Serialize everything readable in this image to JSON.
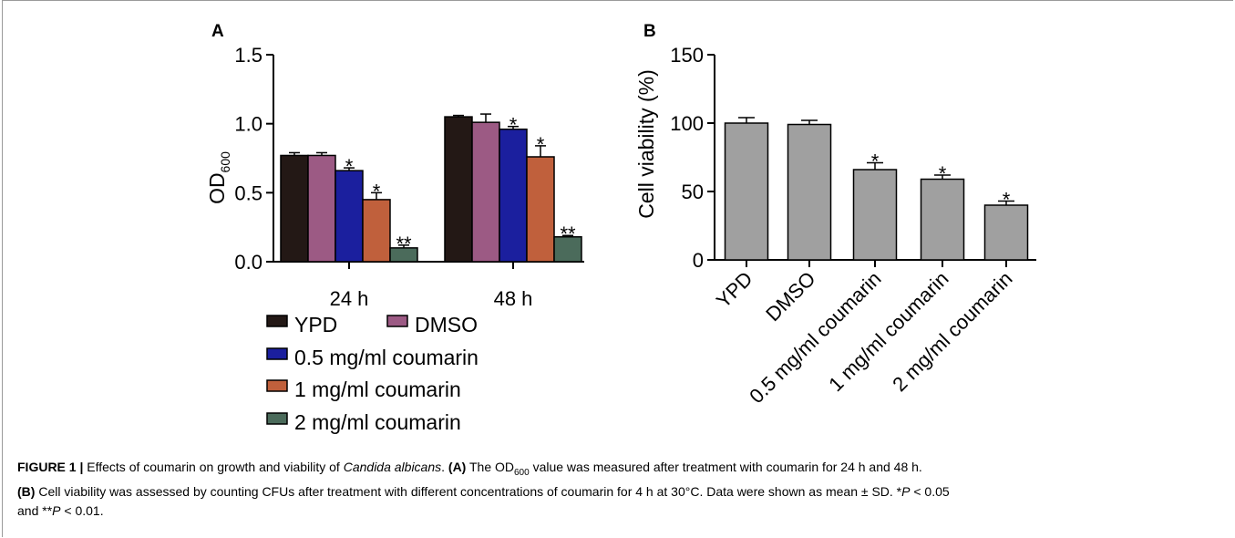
{
  "panel_a_letter": "A",
  "panel_b_letter": "B",
  "chart_data": [
    {
      "type": "bar",
      "panel": "A",
      "ylabel_main": "OD",
      "ylabel_sub": "600",
      "xlabel": "",
      "ylim": [
        0,
        1.5
      ],
      "yticks": [
        "0.0",
        "0.5",
        "1.0",
        "1.5"
      ],
      "categories": [
        "24 h",
        "48 h"
      ],
      "series": [
        {
          "name": "YPD",
          "values": [
            0.77,
            1.05
          ],
          "errors": [
            0.02,
            0.01
          ],
          "marks": [
            "",
            ""
          ],
          "color": "#231815"
        },
        {
          "name": "DMSO",
          "values": [
            0.77,
            1.01
          ],
          "errors": [
            0.02,
            0.06
          ],
          "marks": [
            "",
            ""
          ],
          "color": "#9c5a84"
        },
        {
          "name": "0.5 mg/ml coumarin",
          "values": [
            0.66,
            0.96
          ],
          "errors": [
            0.02,
            0.02
          ],
          "marks": [
            "*",
            "*"
          ],
          "color": "#1b1f9e"
        },
        {
          "name": "1 mg/ml coumarin",
          "values": [
            0.45,
            0.76
          ],
          "errors": [
            0.05,
            0.08
          ],
          "marks": [
            "*",
            "*"
          ],
          "color": "#c0603c"
        },
        {
          "name": "2 mg/ml coumarin",
          "values": [
            0.1,
            0.18
          ],
          "errors": [
            0.02,
            0.01
          ],
          "marks": [
            "**",
            "**"
          ],
          "color": "#4b6b5b"
        }
      ]
    },
    {
      "type": "bar",
      "panel": "B",
      "ylabel": "Cell viability (%)",
      "xlabel": "",
      "ylim": [
        0,
        150
      ],
      "yticks": [
        "0",
        "50",
        "100",
        "150"
      ],
      "categories": [
        "YPD",
        "DMSO",
        "0.5 mg/ml coumarin",
        "1 mg/ml coumarin",
        "2 mg/ml coumarin"
      ],
      "values": [
        100,
        99,
        66,
        59,
        40
      ],
      "errors": [
        4,
        3,
        5,
        3,
        3
      ],
      "marks": [
        "",
        "",
        "*",
        "*",
        "*"
      ],
      "color": "#a0a0a0"
    }
  ],
  "caption": {
    "label": "FIGURE 1 |",
    "s1": " Effects of coumarin on growth and viability of ",
    "species": "Candida albicans",
    "s2": ". ",
    "a_tag": "(A)",
    "s3": " The OD",
    "s3_sub": "600",
    "s4": " value was measured after treatment with coumarin for 24 h and 48 h.",
    "b_tag": "(B)",
    "s5": " Cell viability was assessed by counting CFUs after treatment with different concentrations of coumarin for 4 h at 30°C. Data were shown as mean ± SD. *",
    "p1": "P",
    "s6": " < 0.05",
    "s7": "and **",
    "p2": "P",
    "s8": " < 0.01."
  }
}
